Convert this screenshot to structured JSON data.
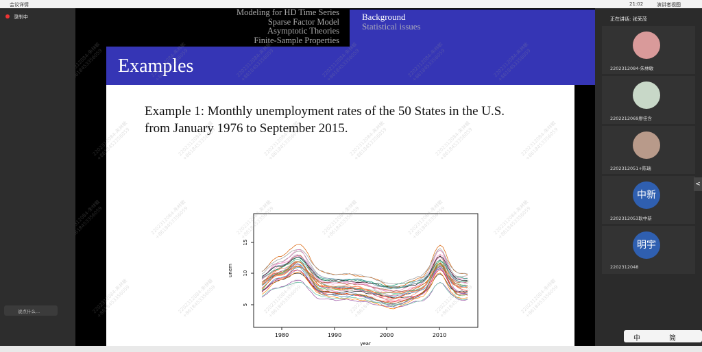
{
  "topbar": {
    "meeting_info": "会议详情",
    "time": "21:02",
    "view": "演讲者视图"
  },
  "left_panel": {
    "recording": "录制中",
    "chat_placeholder": "说点什么..."
  },
  "slide": {
    "nav_left": [
      "Modeling for HD Time Series",
      "Sparse Factor Model",
      "Asymptotic Theories",
      "Finite-Sample Properties"
    ],
    "nav_right": [
      "Background",
      "Statistical issues"
    ],
    "title": "Examples",
    "body": [
      "Example 1: Monthly unemployment rates of the 50 States in the U.S.",
      "from January 1976 to September 2015."
    ],
    "plot": {
      "x_label": "year",
      "y_label": "unem",
      "x_ticks": [
        "1980",
        "1990",
        "2000",
        "2010"
      ],
      "y_ticks": [
        "5",
        "10",
        "15"
      ]
    }
  },
  "watermark": [
    "2202312084-朱林敏",
    "+8618453356059"
  ],
  "right_panel": {
    "speaking": "正在讲话: 张荣茂",
    "participants": [
      {
        "name": "2202312084-朱林敏"
      },
      {
        "name": "2202212069廖佳含"
      },
      {
        "name": "2202312051+陈瑞"
      },
      {
        "name": "2202312053耿中新",
        "avatar": "中新"
      },
      {
        "name": "2202312048",
        "avatar": "明宇"
      }
    ]
  },
  "ime_bar": [
    "中",
    "简"
  ]
}
